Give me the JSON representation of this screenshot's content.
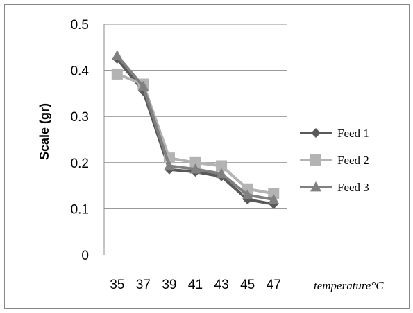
{
  "chart_data": {
    "type": "line",
    "title": "",
    "xlabel": "temperature°C",
    "ylabel": "Scale (gr)",
    "categories": [
      "35",
      "37",
      "39",
      "41",
      "43",
      "45",
      "47"
    ],
    "ylim": [
      0,
      0.5
    ],
    "yticks": [
      "0",
      "0.1",
      "0.2",
      "0.3",
      "0.4",
      "0.5"
    ],
    "grid": true,
    "legend_position": "right",
    "series": [
      {
        "name": "Feed 1",
        "values": [
          0.425,
          0.355,
          0.185,
          0.18,
          0.17,
          0.12,
          0.11
        ],
        "color": "#595959",
        "marker": "diamond"
      },
      {
        "name": "Feed 2",
        "values": [
          0.392,
          0.37,
          0.21,
          0.2,
          0.193,
          0.143,
          0.133
        ],
        "color": "#b3b3b3",
        "marker": "square"
      },
      {
        "name": "Feed 3",
        "values": [
          0.432,
          0.365,
          0.193,
          0.186,
          0.176,
          0.13,
          0.12
        ],
        "color": "#808080",
        "marker": "triangle"
      }
    ]
  }
}
